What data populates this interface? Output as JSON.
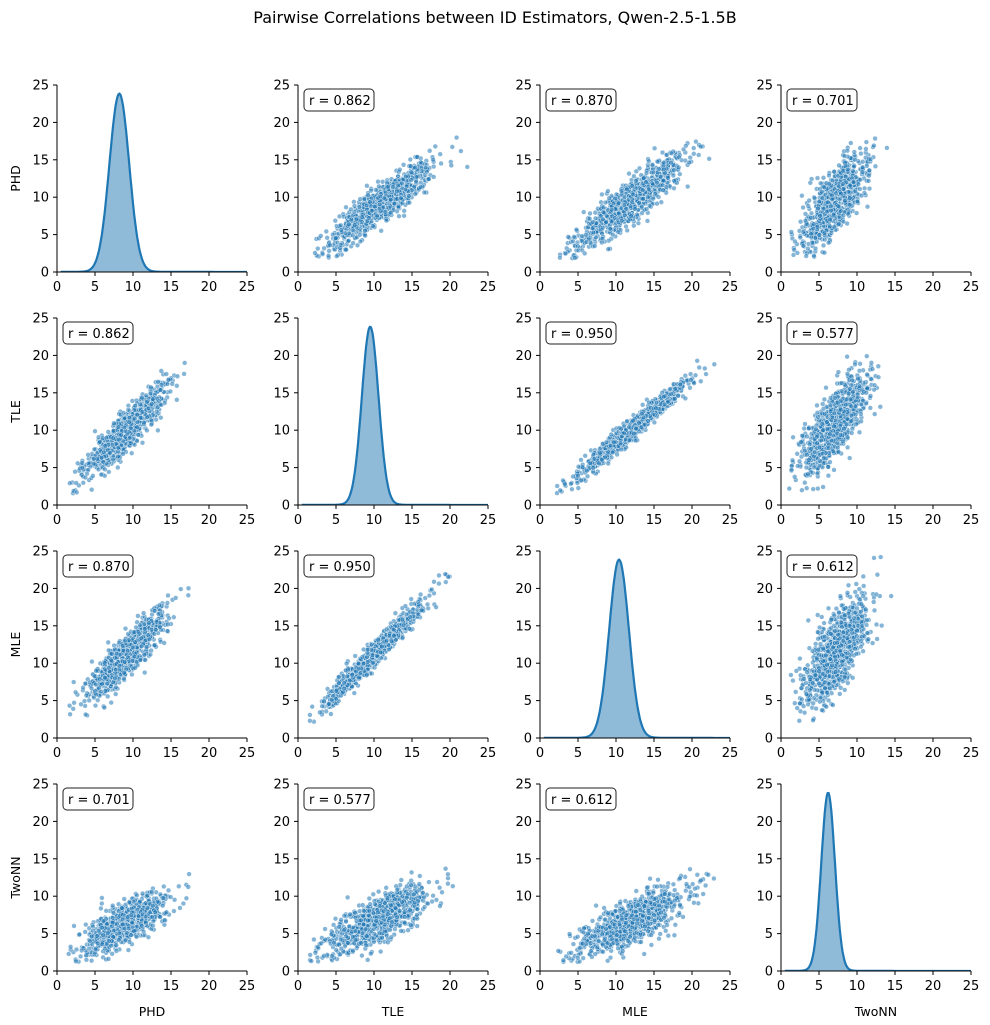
{
  "chart_data": {
    "type": "scatter",
    "title": "Pairwise Correlations between ID Estimators, Qwen-2.5-1.5B",
    "variables": [
      "PHD",
      "TLE",
      "MLE",
      "TwoNN"
    ],
    "axis_range": [
      0,
      25
    ],
    "ticks": [
      0,
      5,
      10,
      15,
      20,
      25
    ],
    "tick_labels": [
      "0",
      "5",
      "10",
      "15",
      "20",
      "25"
    ],
    "point_color": "#1f77b4",
    "diagonal": {
      "kind": "kde",
      "densities": [
        {
          "variable": "PHD",
          "peak_x": 8.2,
          "peak_y": 23.8,
          "spread": 1.3
        },
        {
          "variable": "TLE",
          "peak_x": 9.5,
          "peak_y": 23.8,
          "spread": 1.1
        },
        {
          "variable": "MLE",
          "peak_x": 10.4,
          "peak_y": 23.8,
          "spread": 1.3
        },
        {
          "variable": "TwoNN",
          "peak_x": 6.2,
          "peak_y": 23.8,
          "spread": 0.9
        }
      ]
    },
    "correlations": [
      {
        "row": "PHD",
        "col": "TLE",
        "label": "r = 0.862"
      },
      {
        "row": "PHD",
        "col": "MLE",
        "label": "r = 0.870"
      },
      {
        "row": "PHD",
        "col": "TwoNN",
        "label": "r = 0.701"
      },
      {
        "row": "TLE",
        "col": "PHD",
        "label": "r = 0.862"
      },
      {
        "row": "TLE",
        "col": "MLE",
        "label": "r = 0.950"
      },
      {
        "row": "TLE",
        "col": "TwoNN",
        "label": "r = 0.577"
      },
      {
        "row": "MLE",
        "col": "PHD",
        "label": "r = 0.870"
      },
      {
        "row": "MLE",
        "col": "TLE",
        "label": "r = 0.950"
      },
      {
        "row": "MLE",
        "col": "TwoNN",
        "label": "r = 0.612"
      },
      {
        "row": "TwoNN",
        "col": "PHD",
        "label": "r = 0.701"
      },
      {
        "row": "TwoNN",
        "col": "TLE",
        "label": "r = 0.577"
      },
      {
        "row": "TwoNN",
        "col": "MLE",
        "label": "r = 0.612"
      }
    ],
    "scatter_panels": [
      {
        "row": "PHD",
        "col": "TLE",
        "x_range": [
          1.5,
          23
        ],
        "slope": 0.72,
        "intercept": 1.2,
        "noise": 1.3,
        "y_min": 1.8,
        "y_max": 18.2
      },
      {
        "row": "PHD",
        "col": "MLE",
        "x_range": [
          2,
          25
        ],
        "slope": 0.78,
        "intercept": 0.3,
        "noise": 1.4,
        "y_min": 1.8,
        "y_max": 18
      },
      {
        "row": "PHD",
        "col": "TwoNN",
        "x_range": [
          1,
          15
        ],
        "slope": 1.15,
        "intercept": 1.3,
        "noise": 2.0,
        "y_min": 2,
        "y_max": 18
      },
      {
        "row": "TLE",
        "col": "PHD",
        "x_range": [
          1.5,
          18.5
        ],
        "slope": 1.0,
        "intercept": 0.8,
        "noise": 1.2,
        "y_min": 1.5,
        "y_max": 23
      },
      {
        "row": "TLE",
        "col": "MLE",
        "x_range": [
          2,
          25
        ],
        "slope": 0.86,
        "intercept": -0.3,
        "noise": 0.7,
        "y_min": 1.5,
        "y_max": 21
      },
      {
        "row": "TLE",
        "col": "TwoNN",
        "x_range": [
          1,
          15
        ],
        "slope": 1.1,
        "intercept": 3.0,
        "noise": 2.2,
        "y_min": 1.8,
        "y_max": 21
      },
      {
        "row": "MLE",
        "col": "PHD",
        "x_range": [
          1.5,
          18.5
        ],
        "slope": 1.0,
        "intercept": 2.0,
        "noise": 1.4,
        "y_min": 2,
        "y_max": 25
      },
      {
        "row": "MLE",
        "col": "TLE",
        "x_range": [
          1.5,
          21
        ],
        "slope": 1.05,
        "intercept": 0.7,
        "noise": 0.8,
        "y_min": 2,
        "y_max": 25
      },
      {
        "row": "MLE",
        "col": "TwoNN",
        "x_range": [
          1,
          15
        ],
        "slope": 1.1,
        "intercept": 3.6,
        "noise": 2.5,
        "y_min": 2,
        "y_max": 25
      },
      {
        "row": "TwoNN",
        "col": "PHD",
        "x_range": [
          1.5,
          18.5
        ],
        "slope": 0.52,
        "intercept": 1.7,
        "noise": 1.3,
        "y_min": 1.2,
        "y_max": 14.5
      },
      {
        "row": "TwoNN",
        "col": "TLE",
        "x_range": [
          1.5,
          22
        ],
        "slope": 0.5,
        "intercept": 1.5,
        "noise": 1.5,
        "y_min": 1.2,
        "y_max": 14.5
      },
      {
        "row": "TwoNN",
        "col": "MLE",
        "x_range": [
          2,
          25
        ],
        "slope": 0.48,
        "intercept": 0.8,
        "noise": 1.5,
        "y_min": 1.2,
        "y_max": 14.5
      }
    ]
  }
}
